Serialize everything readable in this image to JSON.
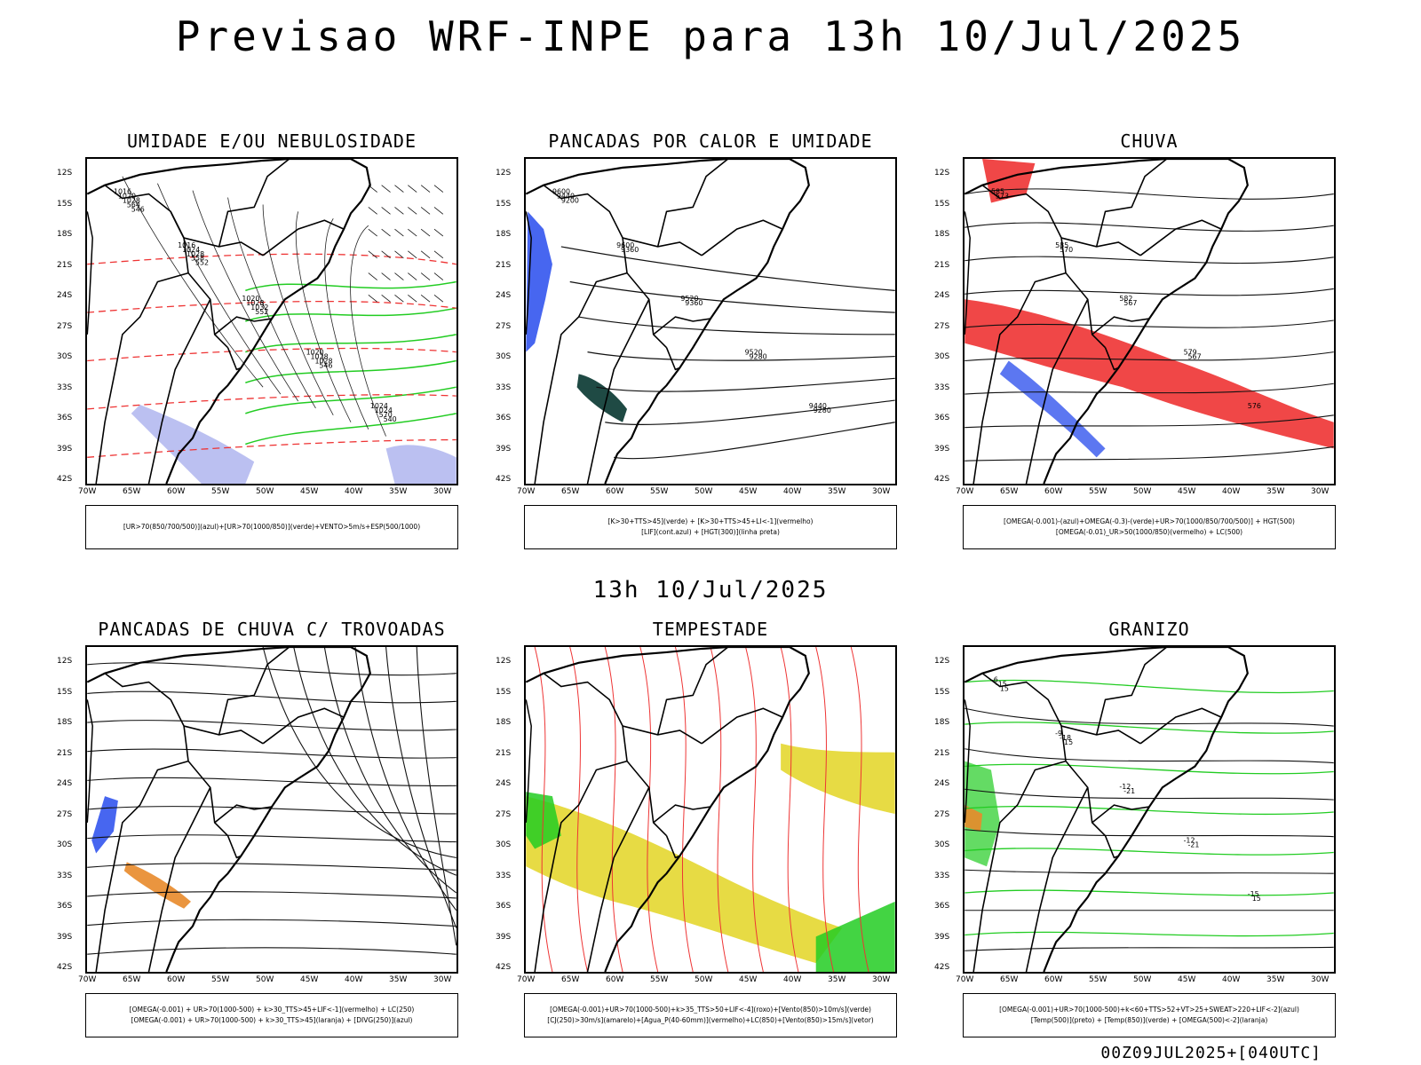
{
  "title": "Previsao WRF-INPE  para 13h 10/Jul/2025",
  "subtitle": "13h 10/Jul/2025",
  "footer": "00Z09JUL2025+[040UTC]",
  "axes": {
    "lat": [
      "12S",
      "15S",
      "18S",
      "21S",
      "24S",
      "27S",
      "30S",
      "33S",
      "36S",
      "39S",
      "42S"
    ],
    "lon": [
      "70W",
      "65W",
      "60W",
      "55W",
      "50W",
      "45W",
      "40W",
      "35W",
      "30W"
    ]
  },
  "colors": {
    "blue": "#3355ee",
    "green": "#22cc22",
    "red": "#ee3333",
    "orange": "#e88a2a",
    "yellow": "#e6d93a",
    "lavender": "#aab0ee",
    "darkteal": "#1f4a44"
  },
  "panels": [
    {
      "id": "umidade",
      "title": "UMIDADE E/OU NEBULOSIDADE",
      "legend": [
        "[UR>70(850/700/500)](azul)+[UR>70(1000/850)](verde)+VENTO>5m/s+ESP(500/1000)"
      ],
      "labels": [
        "1016",
        "1016",
        "1020",
        "1020",
        "1024",
        "1020",
        "1024",
        "1028",
        "1028",
        "1024",
        "1028",
        "1028",
        "1032",
        "1028",
        "570",
        "564",
        "558",
        "552",
        "546",
        "540",
        "546",
        "552"
      ]
    },
    {
      "id": "pancadas-calor",
      "title": "PANCADAS POR CALOR E UMIDADE",
      "legend": [
        "[K>30+TTS>45](verde) + [K>30+TTS>45+LI<-1](vermelho)",
        "[LIF](cont.azul) + [HGT(300)](linha preta)"
      ],
      "labels": [
        "9600",
        "9600",
        "9520",
        "9520",
        "9440",
        "9440",
        "9360",
        "9360",
        "9280",
        "9280",
        "9200"
      ]
    },
    {
      "id": "chuva",
      "title": "CHUVA",
      "legend": [
        "[OMEGA(-0.001)-(azul)+OMEGA(-0.3)-(verde)+UR>70(1000/850/700/500)] + HGT(500)",
        "[OMEGA(-0.01)_UR>50(1000/850)(vermelho) + LC(500)"
      ],
      "labels": [
        "585",
        "585",
        "582",
        "579",
        "576",
        "573",
        "570",
        "567",
        "567"
      ]
    },
    {
      "id": "trovoadas",
      "title": "PANCADAS DE CHUVA C/ TROVOADAS",
      "legend": [
        "[OMEGA(-0.001) + UR>70(1000-500) + k>30_TTS>45+LIF<-1](vermelho) + LC(250)",
        "[OMEGA(-0.001) + UR>70(1000-500) + k>30_TTS>45](laranja) + [DIVG(250)](azul)"
      ],
      "labels": []
    },
    {
      "id": "tempestade",
      "title": "TEMPESTADE",
      "legend": [
        "[OMEGA(-0.001)+UR>70(1000-500)+k>35_TTS>50+LIF<-4](roxo)+[Vento(850)>10m/s](verde)",
        "[CJ(250)>30m/s](amarelo)+[Agua_P(40-60mm)](vermelho)+LC(850)+[Vento(850)>15m/s](vetor)"
      ],
      "labels": []
    },
    {
      "id": "granizo",
      "title": "GRANIZO",
      "legend": [
        "[OMEGA(-0.001)+UR>70(1000-500)+k<60+TTS>52+VT>25+SWEAT>220+LIF<-2](azul)",
        "[Temp(500)](preto) + [Temp(850)](verde) + [OMEGA(500)<-2](laranja)"
      ],
      "labels": [
        "-6",
        "-9",
        "-12",
        "-12",
        "-15",
        "-15",
        "-18",
        "-21",
        "-21",
        "15",
        "15",
        "15"
      ]
    }
  ]
}
